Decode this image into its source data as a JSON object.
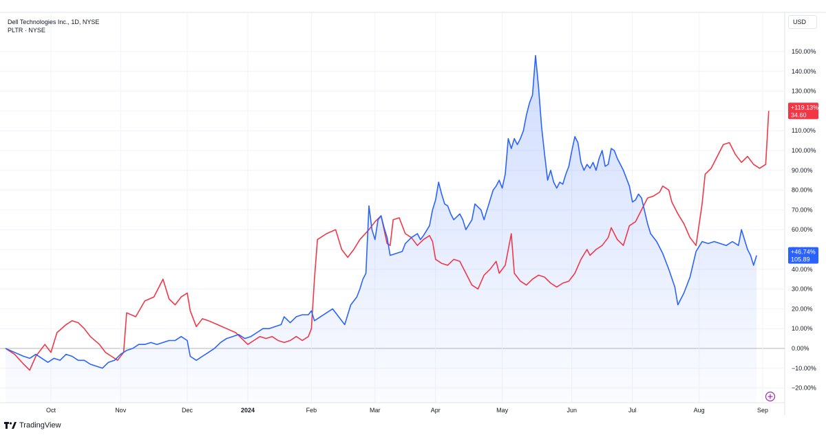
{
  "legend": {
    "primary": "Dell Technologies Inc., 1D, NYSE",
    "secondary": "PLTR · NYSE"
  },
  "currency": "USD",
  "brand": "TradingView",
  "colors": {
    "red": "#f23645",
    "blue": "#2962ff",
    "grid": "#f0f3fa",
    "zero": "#787b86",
    "text": "#131722"
  },
  "chart_data": {
    "type": "line",
    "x_unit": "trading day index (Sep 2023 – Sep 2024)",
    "ylim": [
      -25,
      153
    ],
    "yticks": [
      -20,
      -10,
      0,
      10,
      20,
      30,
      40,
      50,
      60,
      70,
      80,
      90,
      100,
      110,
      120,
      130,
      140,
      150
    ],
    "ytick_labels": [
      "−20.00%",
      "−10.00%",
      "0.00%",
      "10.00%",
      "20.00%",
      "30.00%",
      "40.00%",
      "50.00%",
      "60.00%",
      "70.00%",
      "80.00%",
      "90.00%",
      "100.00%",
      "110.00%",
      "120.00%",
      "130.00%",
      "140.00%",
      "150.00%"
    ],
    "xticks": [
      {
        "label": "Oct",
        "x": 15,
        "bold": false
      },
      {
        "label": "Nov",
        "x": 38,
        "bold": false
      },
      {
        "label": "Dec",
        "x": 60,
        "bold": false
      },
      {
        "label": "2024",
        "x": 80,
        "bold": true
      },
      {
        "label": "Feb",
        "x": 101,
        "bold": false
      },
      {
        "label": "Mar",
        "x": 122,
        "bold": false
      },
      {
        "label": "Apr",
        "x": 142,
        "bold": false
      },
      {
        "label": "May",
        "x": 164,
        "bold": false
      },
      {
        "label": "Jun",
        "x": 187,
        "bold": false
      },
      {
        "label": "Jul",
        "x": 207,
        "bold": false
      },
      {
        "label": "Aug",
        "x": 229,
        "bold": false
      },
      {
        "label": "Sep",
        "x": 250,
        "bold": false
      }
    ],
    "series": [
      {
        "name": "Dell Technologies Inc.",
        "color": "#f23645",
        "area": false,
        "badge": [
          "+119.13%",
          "34.60"
        ],
        "points": [
          [
            0,
            0
          ],
          [
            3,
            -3
          ],
          [
            6,
            -8
          ],
          [
            8,
            -11
          ],
          [
            10,
            -4
          ],
          [
            13,
            2
          ],
          [
            15,
            -2
          ],
          [
            17,
            8
          ],
          [
            20,
            12
          ],
          [
            22,
            14
          ],
          [
            24,
            13
          ],
          [
            26,
            10
          ],
          [
            28,
            6
          ],
          [
            31,
            2
          ],
          [
            33,
            -2
          ],
          [
            35,
            -4
          ],
          [
            37,
            -6
          ],
          [
            39,
            -2
          ],
          [
            40,
            18
          ],
          [
            43,
            16
          ],
          [
            46,
            24
          ],
          [
            49,
            26
          ],
          [
            50,
            29
          ],
          [
            52,
            35
          ],
          [
            54,
            25
          ],
          [
            56,
            22
          ],
          [
            58,
            26
          ],
          [
            60,
            28
          ],
          [
            61,
            19
          ],
          [
            63,
            11
          ],
          [
            65,
            15
          ],
          [
            67,
            14
          ],
          [
            70,
            12
          ],
          [
            73,
            10
          ],
          [
            76,
            8
          ],
          [
            78,
            5
          ],
          [
            80,
            2
          ],
          [
            82,
            4
          ],
          [
            84,
            6
          ],
          [
            86,
            5
          ],
          [
            88,
            6
          ],
          [
            90,
            4
          ],
          [
            92,
            3
          ],
          [
            94,
            4
          ],
          [
            96,
            6
          ],
          [
            98,
            4
          ],
          [
            100,
            6
          ],
          [
            101,
            10
          ],
          [
            102,
            35
          ],
          [
            103,
            55
          ],
          [
            106,
            58
          ],
          [
            109,
            60
          ],
          [
            111,
            50
          ],
          [
            113,
            46
          ],
          [
            115,
            50
          ],
          [
            117,
            55
          ],
          [
            120,
            60
          ],
          [
            122,
            64
          ],
          [
            124,
            67
          ],
          [
            125,
            60
          ],
          [
            126,
            53
          ],
          [
            127,
            52
          ],
          [
            128,
            65
          ],
          [
            130,
            66
          ],
          [
            132,
            58
          ],
          [
            134,
            56
          ],
          [
            136,
            52
          ],
          [
            138,
            55
          ],
          [
            140,
            57
          ],
          [
            141,
            54
          ],
          [
            142,
            45
          ],
          [
            144,
            43
          ],
          [
            146,
            42
          ],
          [
            148,
            45
          ],
          [
            150,
            44
          ],
          [
            152,
            38
          ],
          [
            154,
            32
          ],
          [
            156,
            30
          ],
          [
            158,
            37
          ],
          [
            160,
            40
          ],
          [
            162,
            44
          ],
          [
            163,
            38
          ],
          [
            165,
            42
          ],
          [
            167,
            58
          ],
          [
            168,
            38
          ],
          [
            170,
            34
          ],
          [
            172,
            32
          ],
          [
            174,
            35
          ],
          [
            176,
            37
          ],
          [
            178,
            36
          ],
          [
            180,
            33
          ],
          [
            182,
            31
          ],
          [
            184,
            33
          ],
          [
            186,
            34
          ],
          [
            188,
            38
          ],
          [
            190,
            45
          ],
          [
            192,
            50
          ],
          [
            193,
            47
          ],
          [
            195,
            50
          ],
          [
            197,
            52
          ],
          [
            199,
            56
          ],
          [
            200,
            61
          ],
          [
            202,
            55
          ],
          [
            204,
            52
          ],
          [
            206,
            62
          ],
          [
            208,
            64
          ],
          [
            210,
            70
          ],
          [
            212,
            76
          ],
          [
            214,
            77
          ],
          [
            216,
            79
          ],
          [
            217,
            82
          ],
          [
            219,
            80
          ],
          [
            220,
            74
          ],
          [
            222,
            68
          ],
          [
            224,
            63
          ],
          [
            226,
            56
          ],
          [
            228,
            52
          ],
          [
            230,
            73
          ],
          [
            231,
            88
          ],
          [
            233,
            91
          ],
          [
            235,
            97
          ],
          [
            237,
            103
          ],
          [
            239,
            104
          ],
          [
            241,
            98
          ],
          [
            243,
            94
          ],
          [
            245,
            97
          ],
          [
            247,
            93
          ],
          [
            249,
            91
          ],
          [
            251,
            93
          ],
          [
            252,
            120
          ]
        ]
      },
      {
        "name": "PLTR",
        "color": "#2962ff",
        "area": true,
        "badge": [
          "+46.74%",
          "105.89"
        ],
        "points": [
          [
            0,
            0
          ],
          [
            3,
            -2
          ],
          [
            6,
            -4
          ],
          [
            8,
            -5
          ],
          [
            10,
            -3
          ],
          [
            12,
            -5
          ],
          [
            14,
            -7
          ],
          [
            16,
            -5
          ],
          [
            18,
            -6
          ],
          [
            20,
            -3
          ],
          [
            22,
            -4
          ],
          [
            24,
            -6
          ],
          [
            26,
            -6
          ],
          [
            28,
            -8
          ],
          [
            30,
            -9
          ],
          [
            32,
            -10
          ],
          [
            34,
            -7
          ],
          [
            36,
            -6
          ],
          [
            38,
            -3
          ],
          [
            40,
            -1
          ],
          [
            42,
            0
          ],
          [
            44,
            2
          ],
          [
            46,
            2
          ],
          [
            48,
            3
          ],
          [
            50,
            2
          ],
          [
            52,
            3
          ],
          [
            54,
            4
          ],
          [
            56,
            4
          ],
          [
            58,
            6
          ],
          [
            60,
            4
          ],
          [
            61,
            -4
          ],
          [
            63,
            -6
          ],
          [
            65,
            -4
          ],
          [
            67,
            -2
          ],
          [
            69,
            0
          ],
          [
            71,
            3
          ],
          [
            73,
            5
          ],
          [
            75,
            6
          ],
          [
            77,
            7
          ],
          [
            79,
            5
          ],
          [
            81,
            6
          ],
          [
            83,
            8
          ],
          [
            85,
            10
          ],
          [
            87,
            10
          ],
          [
            89,
            11
          ],
          [
            91,
            12
          ],
          [
            92,
            16
          ],
          [
            94,
            13
          ],
          [
            96,
            16
          ],
          [
            98,
            17
          ],
          [
            100,
            17
          ],
          [
            101,
            19
          ],
          [
            102,
            14
          ],
          [
            104,
            16
          ],
          [
            106,
            18
          ],
          [
            108,
            20
          ],
          [
            110,
            16
          ],
          [
            112,
            12
          ],
          [
            114,
            22
          ],
          [
            116,
            26
          ],
          [
            117,
            30
          ],
          [
            118,
            35
          ],
          [
            119,
            38
          ],
          [
            120,
            72
          ],
          [
            121,
            60
          ],
          [
            122,
            55
          ],
          [
            123,
            65
          ],
          [
            124,
            67
          ],
          [
            125,
            61
          ],
          [
            126,
            56
          ],
          [
            127,
            47
          ],
          [
            129,
            48
          ],
          [
            131,
            49
          ],
          [
            132,
            53
          ],
          [
            134,
            56
          ],
          [
            136,
            58
          ],
          [
            137,
            55
          ],
          [
            138,
            57
          ],
          [
            140,
            62
          ],
          [
            141,
            70
          ],
          [
            142,
            75
          ],
          [
            143,
            84
          ],
          [
            144,
            78
          ],
          [
            145,
            73
          ],
          [
            146,
            72
          ],
          [
            147,
            68
          ],
          [
            148,
            65
          ],
          [
            150,
            68
          ],
          [
            151,
            65
          ],
          [
            152,
            60
          ],
          [
            154,
            65
          ],
          [
            155,
            73
          ],
          [
            157,
            70
          ],
          [
            158,
            65
          ],
          [
            159,
            70
          ],
          [
            160,
            75
          ],
          [
            161,
            80
          ],
          [
            162,
            82
          ],
          [
            163,
            85
          ],
          [
            164,
            81
          ],
          [
            165,
            88
          ],
          [
            166,
            106
          ],
          [
            167,
            101
          ],
          [
            168,
            106
          ],
          [
            169,
            103
          ],
          [
            170,
            106
          ],
          [
            171,
            110
          ],
          [
            172,
            118
          ],
          [
            173,
            124
          ],
          [
            174,
            128
          ],
          [
            175,
            148
          ],
          [
            176,
            132
          ],
          [
            177,
            112
          ],
          [
            178,
            98
          ],
          [
            179,
            85
          ],
          [
            180,
            90
          ],
          [
            181,
            84
          ],
          [
            182,
            81
          ],
          [
            183,
            84
          ],
          [
            184,
            83
          ],
          [
            185,
            88
          ],
          [
            186,
            92
          ],
          [
            187,
            100
          ],
          [
            188,
            107
          ],
          [
            189,
            104
          ],
          [
            190,
            94
          ],
          [
            191,
            90
          ],
          [
            192,
            93
          ],
          [
            193,
            91
          ],
          [
            194,
            94
          ],
          [
            195,
            90
          ],
          [
            196,
            96
          ],
          [
            197,
            100
          ],
          [
            198,
            92
          ],
          [
            199,
            93
          ],
          [
            200,
            101
          ],
          [
            201,
            100
          ],
          [
            202,
            96
          ],
          [
            204,
            90
          ],
          [
            206,
            82
          ],
          [
            207,
            74
          ],
          [
            208,
            75
          ],
          [
            209,
            78
          ],
          [
            210,
            76
          ],
          [
            212,
            63
          ],
          [
            213,
            58
          ],
          [
            215,
            54
          ],
          [
            217,
            48
          ],
          [
            219,
            40
          ],
          [
            221,
            31
          ],
          [
            222,
            22
          ],
          [
            224,
            28
          ],
          [
            226,
            36
          ],
          [
            228,
            49
          ],
          [
            230,
            54
          ],
          [
            232,
            53
          ],
          [
            234,
            54
          ],
          [
            236,
            53
          ],
          [
            238,
            52
          ],
          [
            240,
            54
          ],
          [
            242,
            52
          ],
          [
            243,
            60
          ],
          [
            244,
            55
          ],
          [
            245,
            50
          ],
          [
            246,
            47
          ],
          [
            247,
            42
          ],
          [
            248,
            47
          ]
        ]
      }
    ]
  }
}
